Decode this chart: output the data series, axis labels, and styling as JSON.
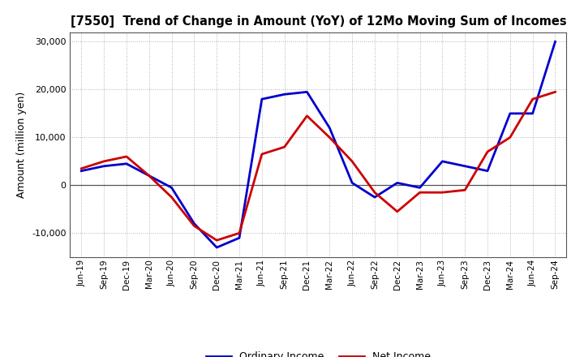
{
  "title": "[7550]  Trend of Change in Amount (YoY) of 12Mo Moving Sum of Incomes",
  "ylabel": "Amount (million yen)",
  "xlabels": [
    "Jun-19",
    "Sep-19",
    "Dec-19",
    "Mar-20",
    "Jun-20",
    "Sep-20",
    "Dec-20",
    "Mar-21",
    "Jun-21",
    "Sep-21",
    "Dec-21",
    "Mar-22",
    "Jun-22",
    "Sep-22",
    "Dec-22",
    "Mar-23",
    "Jun-23",
    "Sep-23",
    "Dec-23",
    "Mar-24",
    "Jun-24",
    "Sep-24"
  ],
  "ordinary_income": [
    3000,
    4000,
    4500,
    2000,
    -500,
    -8000,
    -13000,
    -11000,
    18000,
    19000,
    19500,
    12000,
    500,
    -2500,
    500,
    -500,
    5000,
    4000,
    3000,
    15000,
    15000,
    30000
  ],
  "net_income": [
    3500,
    5000,
    6000,
    2000,
    -2500,
    -8500,
    -11500,
    -10000,
    6500,
    8000,
    14500,
    10000,
    5000,
    -1500,
    -5500,
    -1500,
    -1500,
    -1000,
    7000,
    10000,
    18000,
    19500
  ],
  "ordinary_color": "#0000cc",
  "net_color": "#cc0000",
  "line_width": 2.0,
  "ylim": [
    -15000,
    32000
  ],
  "yticks": [
    -10000,
    0,
    10000,
    20000,
    30000
  ],
  "background_color": "#ffffff",
  "grid_color": "#999999",
  "spine_color": "#555555",
  "zero_line_color": "#555555"
}
